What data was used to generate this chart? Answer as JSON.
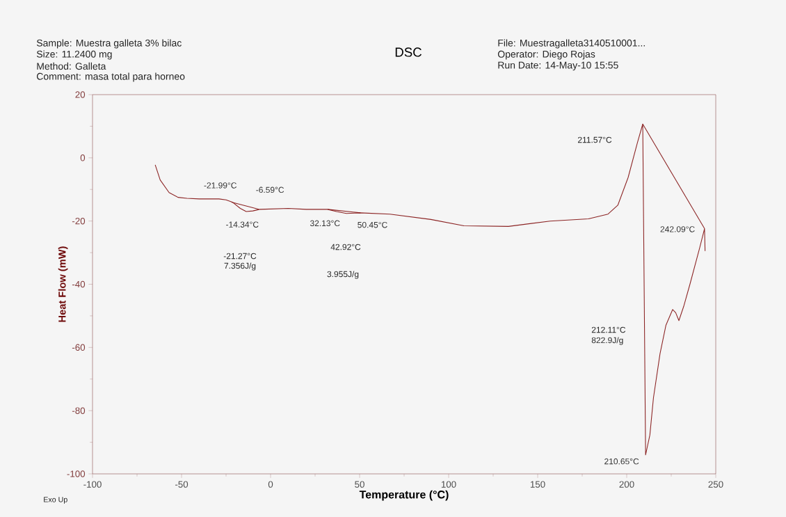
{
  "chart_data": {
    "type": "line",
    "title": "DSC",
    "xlabel": "Temperature (°C)",
    "ylabel": "Heat Flow (mW)",
    "xlim": [
      -100,
      250
    ],
    "ylim": [
      -100,
      20
    ],
    "xticks": [
      -100,
      -50,
      0,
      50,
      100,
      150,
      200,
      250
    ],
    "yticks": [
      -100,
      -80,
      -60,
      -40,
      -20,
      0,
      20
    ],
    "series": [
      {
        "color": "#8b2323",
        "x": [
          -64.8,
          -62,
          -57,
          -52,
          -47,
          -40,
          -29,
          -25,
          -21.5,
          -17,
          -13.7,
          -10,
          -6.2,
          10,
          20,
          32,
          37,
          42.6,
          50.4,
          67,
          90,
          108.6,
          133.6,
          157,
          178.5,
          189.5,
          195,
          200.8,
          206,
          209,
          210.6,
          213,
          215,
          218.7,
          222,
          225.8,
          227.5,
          229.3,
          232,
          235.5,
          241,
          243.7,
          244
        ],
        "values": [
          -2.2,
          -7,
          -11,
          -12.5,
          -12.8,
          -13,
          -13,
          -13.3,
          -14,
          -16,
          -17,
          -16.8,
          -16.3,
          -16,
          -16.3,
          -16.3,
          -17,
          -17.6,
          -17.4,
          -17.8,
          -19.5,
          -21.5,
          -21.7,
          -20,
          -19.3,
          -17.8,
          -15,
          -6.2,
          4.8,
          10.7,
          -94,
          -87.7,
          -76,
          -62,
          -53,
          -48,
          -49,
          -51.5,
          -47,
          -40,
          -28.4,
          -22.4,
          -29.5
        ]
      },
      {
        "color": "#8b2323",
        "x": [
          -22,
          -6.6
        ],
        "values": [
          -14,
          -16.3
        ]
      },
      {
        "color": "#8b2323",
        "x": [
          32.1,
          50.5
        ],
        "values": [
          -16.3,
          -17.4
        ]
      },
      {
        "color": "#8b2323",
        "x": [
          209,
          243.7
        ],
        "values": [
          10.7,
          -22.4
        ]
      }
    ],
    "annotations": [
      "Sample: Muestra galleta 3% bilac",
      "Size:   11.2400 mg",
      "Method: Galleta",
      "Comment: masa total para horneo",
      "File: Muestragalleta3140510001...",
      "Operator: Diego Rojas",
      "Run Date: 14-May-10 15:55",
      "Exo Up",
      "-21.27°C",
      "7.356J/g",
      "3.955J/g",
      "212.11°C",
      "822.9J/g",
      {
        "text": "-21.99°C",
        "x": -21.99,
        "y": -14
      },
      {
        "text": "-6.59°C",
        "x": -6.59,
        "y": -16.3
      },
      {
        "text": "-14.34°C",
        "x": -14.34,
        "y": -17
      },
      {
        "text": "32.13°C",
        "x": 32.13,
        "y": -16.3
      },
      {
        "text": "50.45°C",
        "x": 50.45,
        "y": -17.4
      },
      {
        "text": "242.09°C",
        "x": 242.09,
        "y": -22
      },
      {
        "text": "210.65°C",
        "x": 210.65,
        "y": -94
      },
      "42.92°C",
      "211.57°C"
    ]
  }
}
